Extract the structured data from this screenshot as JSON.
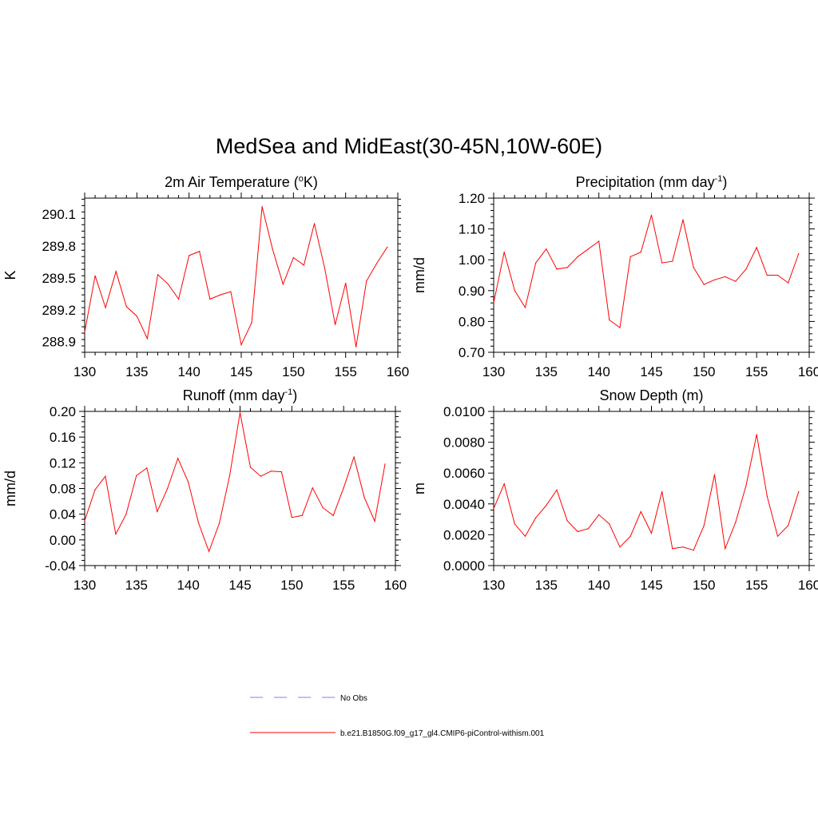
{
  "page": {
    "title": "MedSea and MidEast(30-45N,10W-60E)"
  },
  "legend": {
    "entries": [
      {
        "label": "No Obs",
        "color": "#9a9af0",
        "style": "dashed"
      },
      {
        "label": "b.e21.B1850G.f09_g17_gl4.CMIP6-piControl-withism.001",
        "color": "#ff0000",
        "style": "solid"
      }
    ]
  },
  "chart_data": [
    {
      "type": "line",
      "title": "2m Air Temperature (",
      "title_sup": "o",
      "title_suffix": "K)",
      "xlabel": "",
      "ylabel": "K",
      "xlim": [
        130,
        160
      ],
      "ylim": [
        288.8,
        290.25
      ],
      "xticks": [
        "130",
        "135",
        "140",
        "145",
        "150",
        "155",
        "160"
      ],
      "yticks": [
        "288.9",
        "289.2",
        "289.5",
        "289.8",
        "290.1"
      ],
      "ytick_values": [
        288.9,
        289.2,
        289.5,
        289.8,
        290.1
      ],
      "series": [
        {
          "color": "#ff0000",
          "x": [
            130,
            131,
            132,
            133,
            134,
            135,
            136,
            137,
            138,
            139,
            140,
            141,
            142,
            143,
            144,
            145,
            146,
            147,
            148,
            149,
            150,
            151,
            152,
            153,
            154,
            155,
            156,
            157,
            158,
            159
          ],
          "values": [
            288.99,
            289.52,
            289.22,
            289.56,
            289.23,
            289.14,
            288.93,
            289.53,
            289.44,
            289.3,
            289.71,
            289.75,
            289.3,
            289.34,
            289.37,
            288.87,
            289.08,
            290.17,
            289.77,
            289.44,
            289.69,
            289.62,
            290.01,
            289.59,
            289.06,
            289.45,
            288.85,
            289.47,
            289.64,
            289.79
          ]
        }
      ]
    },
    {
      "type": "line",
      "title": "Precipitation (mm day",
      "title_sup": "-1",
      "title_suffix": ")",
      "xlabel": "",
      "ylabel": "mm/d",
      "xlim": [
        130,
        160
      ],
      "ylim": [
        0.7,
        1.2
      ],
      "xticks": [
        "130",
        "135",
        "140",
        "145",
        "150",
        "155",
        "160"
      ],
      "yticks": [
        "0.70",
        "0.80",
        "0.90",
        "1.00",
        "1.10",
        "1.20"
      ],
      "ytick_values": [
        0.7,
        0.8,
        0.9,
        1.0,
        1.1,
        1.2
      ],
      "series": [
        {
          "color": "#ff0000",
          "x": [
            130,
            131,
            132,
            133,
            134,
            135,
            136,
            137,
            138,
            139,
            140,
            141,
            142,
            143,
            144,
            145,
            146,
            147,
            148,
            149,
            150,
            151,
            152,
            153,
            154,
            155,
            156,
            157,
            158,
            159
          ],
          "values": [
            0.86,
            1.025,
            0.9,
            0.845,
            0.99,
            1.035,
            0.97,
            0.975,
            1.01,
            1.035,
            1.06,
            0.805,
            0.78,
            1.01,
            1.025,
            1.145,
            0.99,
            0.995,
            1.13,
            0.975,
            0.92,
            0.935,
            0.945,
            0.93,
            0.97,
            1.04,
            0.95,
            0.95,
            0.925,
            1.02
          ]
        }
      ]
    },
    {
      "type": "line",
      "title": "Runoff (mm day",
      "title_sup": "-1",
      "title_suffix": ")",
      "xlabel": "",
      "ylabel": "mm/d",
      "xlim": [
        130,
        160
      ],
      "ylim": [
        -0.04,
        0.2
      ],
      "xticks": [
        "130",
        "135",
        "140",
        "145",
        "150",
        "155",
        "160"
      ],
      "yticks": [
        "-0.04",
        "0.00",
        "0.04",
        "0.08",
        "0.12",
        "0.16",
        "0.20"
      ],
      "ytick_values": [
        -0.04,
        0.0,
        0.04,
        0.08,
        0.12,
        0.16,
        0.2
      ],
      "series": [
        {
          "color": "#ff0000",
          "x": [
            130,
            131,
            132,
            133,
            134,
            135,
            136,
            137,
            138,
            139,
            140,
            141,
            142,
            143,
            144,
            145,
            146,
            147,
            148,
            149,
            150,
            151,
            152,
            153,
            154,
            155,
            156,
            157,
            158,
            159
          ],
          "values": [
            0.03,
            0.078,
            0.099,
            0.009,
            0.04,
            0.1,
            0.112,
            0.044,
            0.08,
            0.127,
            0.09,
            0.026,
            -0.018,
            0.026,
            0.1,
            0.198,
            0.113,
            0.099,
            0.107,
            0.106,
            0.035,
            0.038,
            0.081,
            0.05,
            0.038,
            0.081,
            0.129,
            0.066,
            0.029,
            0.118
          ]
        }
      ]
    },
    {
      "type": "line",
      "title": "Snow Depth (m)",
      "title_sup": "",
      "title_suffix": "",
      "xlabel": "",
      "ylabel": "m",
      "xlim": [
        130,
        160
      ],
      "ylim": [
        0.0,
        0.01
      ],
      "xticks": [
        "130",
        "135",
        "140",
        "145",
        "150",
        "155",
        "160"
      ],
      "yticks": [
        "0.0000",
        "0.0020",
        "0.0040",
        "0.0060",
        "0.0080",
        "0.0100"
      ],
      "ytick_values": [
        0.0,
        0.002,
        0.004,
        0.006,
        0.008,
        0.01
      ],
      "series": [
        {
          "color": "#ff0000",
          "x": [
            130,
            131,
            132,
            133,
            134,
            135,
            136,
            137,
            138,
            139,
            140,
            141,
            142,
            143,
            144,
            145,
            146,
            147,
            148,
            149,
            150,
            151,
            152,
            153,
            154,
            155,
            156,
            157,
            158,
            159
          ],
          "values": [
            0.0037,
            0.0053,
            0.0027,
            0.0019,
            0.0031,
            0.0039,
            0.0049,
            0.0029,
            0.0022,
            0.0024,
            0.0033,
            0.0027,
            0.0012,
            0.0019,
            0.0035,
            0.0021,
            0.0048,
            0.0011,
            0.0012,
            0.001,
            0.0026,
            0.0059,
            0.0011,
            0.0028,
            0.0052,
            0.0085,
            0.0045,
            0.0019,
            0.0026,
            0.0048
          ]
        }
      ]
    }
  ]
}
